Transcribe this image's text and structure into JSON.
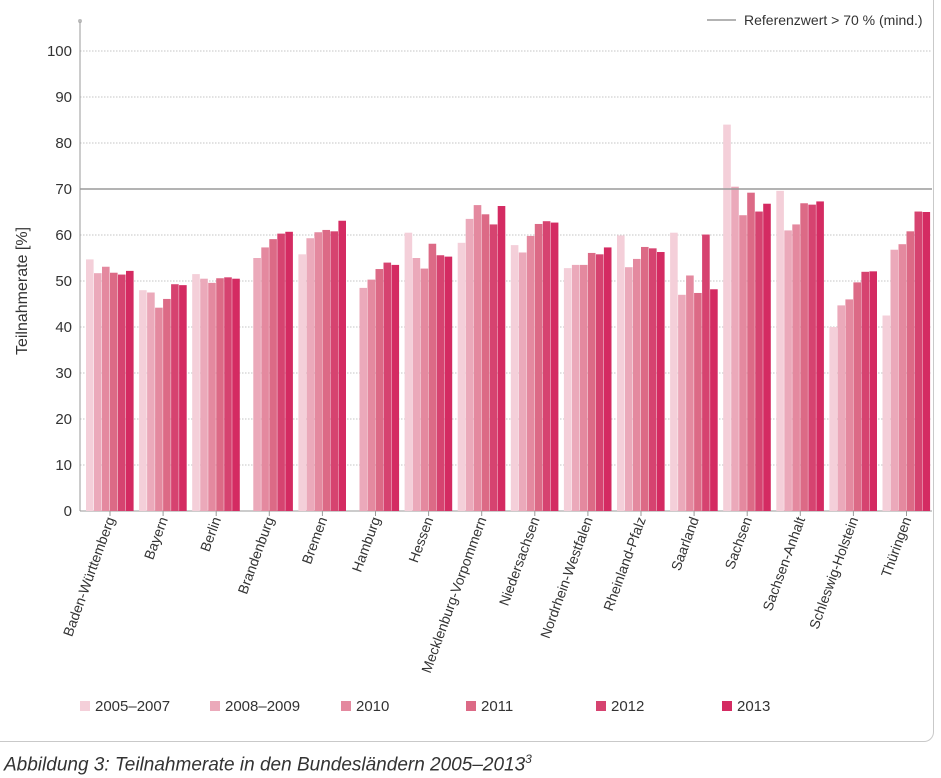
{
  "caption": {
    "text": "Abbildung 3: Teilnahmerate in den Bundesländern 2005–2013",
    "footnote": "3"
  },
  "chart_data": {
    "type": "bar",
    "title": "",
    "xlabel": "",
    "ylabel": "Teilnahmerate [%]",
    "ylim": [
      0,
      100
    ],
    "yticks": [
      0,
      10,
      20,
      30,
      40,
      50,
      60,
      70,
      80,
      90,
      100
    ],
    "grid": true,
    "legend_position": "bottom",
    "reference_line": {
      "label": "Referenzwert > 70 % (mind.)",
      "value": 70,
      "color": "#9a9a9a"
    },
    "categories": [
      "Baden-Württemberg",
      "Bayern",
      "Berlin",
      "Brandenburg",
      "Bremen",
      "Hamburg",
      "Hessen",
      "Mecklenburg-Vorpommern",
      "Niedersachsen",
      "Nordrhein-Westfalen",
      "Rheinland-Pfalz",
      "Saarland",
      "Sachsen",
      "Sachsen-Anhalt",
      "Schleswig-Holstein",
      "Thüringen"
    ],
    "series": [
      {
        "name": "2005–2007",
        "color": "#f4cfd9",
        "values": [
          54.7,
          48.0,
          51.5,
          null,
          55.8,
          null,
          60.5,
          58.3,
          57.8,
          52.8,
          59.9,
          60.5,
          84.0,
          69.6,
          40.0,
          42.5
        ]
      },
      {
        "name": "2008–2009",
        "color": "#eba9ba",
        "values": [
          51.7,
          47.5,
          50.5,
          55.0,
          59.3,
          48.5,
          55.0,
          63.5,
          56.2,
          53.5,
          53.0,
          47.0,
          70.5,
          61.0,
          44.7,
          56.8
        ]
      },
      {
        "name": "2010",
        "color": "#e4899f",
        "values": [
          53.1,
          44.2,
          49.6,
          57.3,
          60.6,
          50.3,
          52.7,
          66.5,
          59.8,
          53.5,
          54.8,
          51.2,
          64.3,
          62.3,
          46.0,
          58.0
        ]
      },
      {
        "name": "2011",
        "color": "#dc6a86",
        "values": [
          51.8,
          46.1,
          50.6,
          59.1,
          61.1,
          52.6,
          58.1,
          64.5,
          62.4,
          56.1,
          57.4,
          47.4,
          69.2,
          66.9,
          49.7,
          60.8
        ]
      },
      {
        "name": "2012",
        "color": "#d64370",
        "values": [
          51.4,
          49.3,
          50.8,
          60.3,
          60.8,
          54.0,
          55.6,
          62.3,
          63.0,
          55.8,
          57.1,
          60.1,
          65.1,
          66.6,
          52.0,
          65.1
        ]
      },
      {
        "name": "2013",
        "color": "#d42b62",
        "values": [
          52.2,
          49.1,
          50.5,
          60.7,
          63.1,
          53.5,
          55.3,
          66.3,
          62.7,
          57.3,
          56.3,
          48.2,
          66.8,
          67.3,
          52.1,
          65.0
        ]
      }
    ]
  }
}
